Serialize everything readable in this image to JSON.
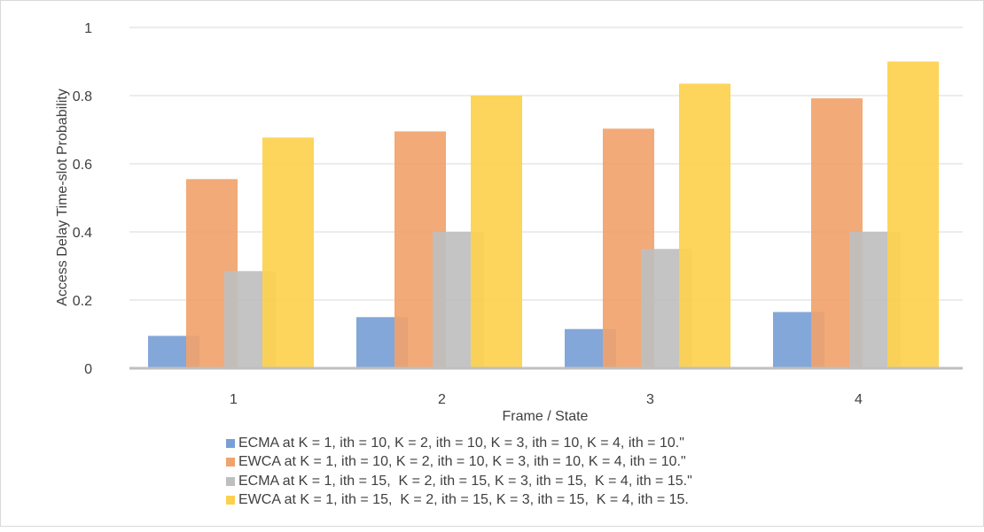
{
  "chart_data": {
    "type": "bar",
    "title": "",
    "xlabel": "Frame / State",
    "ylabel": "Access Delay Time-slot Probability",
    "categories": [
      "1",
      "2",
      "3",
      "4"
    ],
    "ylim": [
      0,
      1
    ],
    "yticks": [
      "0",
      "0.2",
      "0.4",
      "0.6",
      "0.8",
      "1"
    ],
    "grid": true,
    "legend_position": "bottom",
    "series": [
      {
        "name": "ECMA at K = 1, ith = 10, K = 2, ith = 10, K = 3, ith = 10, K = 4, ith = 10.\"",
        "color": "#7a9fd6",
        "values": [
          0.095,
          0.15,
          0.115,
          0.165
        ]
      },
      {
        "name": "EWCA at K = 1, ith = 10, K = 2, ith = 10, K = 3, ith = 10, K = 4, ith = 10.\"",
        "color": "#f0a36c",
        "values": [
          0.555,
          0.695,
          0.703,
          0.792
        ]
      },
      {
        "name": "ECMA at K = 1, ith = 15,  K = 2, ith = 15, K = 3, ith = 15,  K = 4, ith = 15.\"",
        "color": "#bfbfbf",
        "values": [
          0.285,
          0.4,
          0.35,
          0.4
        ]
      },
      {
        "name": "EWCA at K = 1, ith = 15,  K = 2, ith = 15, K = 3, ith = 15,  K = 4, ith = 15.",
        "color": "#fdd14e",
        "values": [
          0.677,
          0.8,
          0.835,
          0.9
        ]
      }
    ]
  }
}
